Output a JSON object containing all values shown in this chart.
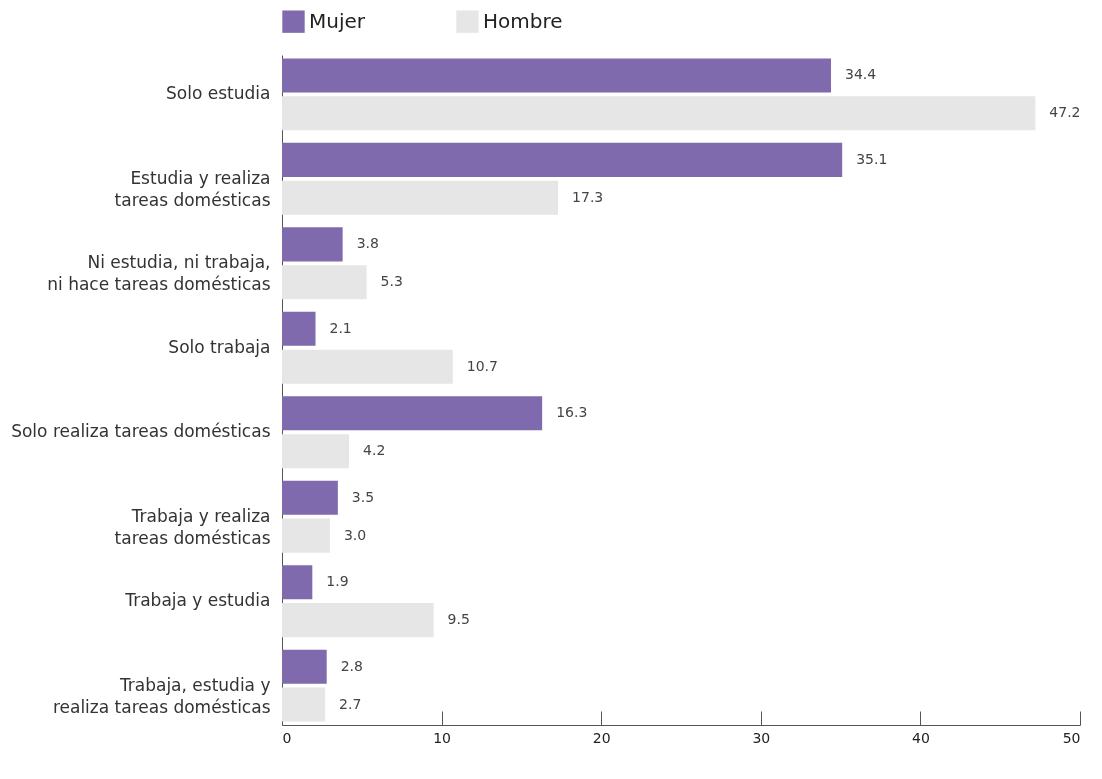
{
  "chart_data": {
    "type": "bar",
    "orientation": "horizontal",
    "categories": [
      "Solo estudia",
      "Estudia y realiza\ntareas domésticas",
      "Ni estudia, ni trabaja,\nni hace tareas domésticas",
      "Solo trabaja",
      "Solo realiza tareas domésticas",
      "Trabaja y realiza\ntareas domésticas",
      "Trabaja y estudia",
      "Trabaja, estudia y\nrealiza tareas domésticas"
    ],
    "series": [
      {
        "name": "Mujer",
        "color": "#7e6aad",
        "values": [
          34.4,
          35.1,
          3.8,
          2.1,
          16.3,
          3.5,
          1.9,
          2.8
        ],
        "value_labels": [
          "34.4",
          "35.1",
          "3.8",
          "2.1",
          "16.3",
          "3.5",
          "1.9",
          "2.8"
        ]
      },
      {
        "name": "Hombre",
        "color": "#e6e6e6",
        "values": [
          47.2,
          17.3,
          5.3,
          10.7,
          4.2,
          3.0,
          9.5,
          2.7
        ],
        "value_labels": [
          "47.2",
          "17.3",
          "5.3",
          "10.7",
          "4.2",
          "3.0",
          "9.5",
          "2.7"
        ]
      }
    ],
    "xlim": [
      0,
      50
    ],
    "xticks": [
      0,
      10,
      20,
      30,
      40,
      50
    ],
    "grid": false,
    "legend": "top"
  }
}
